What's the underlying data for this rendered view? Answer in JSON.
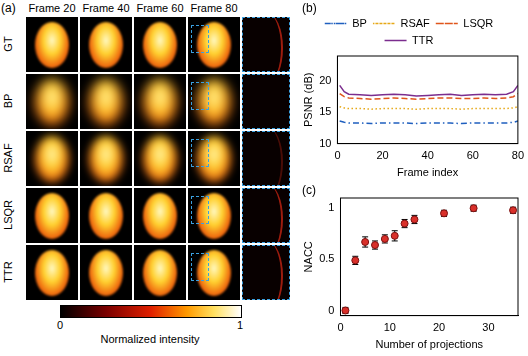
{
  "panel_a": {
    "panel": "(a)",
    "columns": [
      "Frame 20",
      "Frame 40",
      "Frame 60",
      "Frame 80"
    ],
    "rows": [
      "GT",
      "BP",
      "RSAF",
      "LSQR",
      "TTR"
    ],
    "colorbar": {
      "label": "Normalized intensity",
      "range": [
        0,
        1
      ],
      "ticks": [
        0,
        1
      ]
    }
  },
  "chart_data": [
    {
      "panel": "(b)",
      "type": "line",
      "x_label": "Frame index",
      "y_label": "PSNR (dB)",
      "x": [
        1,
        3,
        5,
        10,
        15,
        20,
        25,
        30,
        35,
        40,
        45,
        50,
        55,
        60,
        65,
        70,
        75,
        78,
        80
      ],
      "series": [
        {
          "name": "BP",
          "color": "#1f5fbf",
          "line_style": "dashdot",
          "values": [
            13.6,
            13.4,
            13.3,
            13.3,
            13.2,
            13.3,
            13.3,
            13.3,
            13.2,
            13.3,
            13.3,
            13.3,
            13.2,
            13.3,
            13.3,
            13.3,
            13.3,
            13.4,
            13.6
          ]
        },
        {
          "name": "RSAF",
          "color": "#e6a817",
          "line_style": "dotted",
          "values": [
            15.9,
            15.7,
            15.6,
            15.6,
            15.5,
            15.6,
            15.6,
            15.6,
            15.5,
            15.6,
            15.6,
            15.6,
            15.5,
            15.6,
            15.6,
            15.6,
            15.6,
            15.7,
            15.9
          ]
        },
        {
          "name": "LSQR",
          "color": "#e0551b",
          "line_style": "dashed",
          "values": [
            18.0,
            17.5,
            17.3,
            17.2,
            17.1,
            17.2,
            17.3,
            17.2,
            17.1,
            17.2,
            17.3,
            17.3,
            17.2,
            17.2,
            17.3,
            17.2,
            17.3,
            17.5,
            18.0
          ]
        },
        {
          "name": "TTR",
          "color": "#7b2d8e",
          "line_style": "solid",
          "values": [
            19.3,
            18.3,
            17.9,
            17.8,
            17.7,
            17.8,
            17.9,
            17.8,
            17.6,
            17.7,
            17.8,
            17.9,
            17.7,
            17.8,
            17.9,
            17.8,
            17.9,
            18.3,
            19.3
          ]
        }
      ],
      "xlim": [
        0,
        80
      ],
      "xticks": [
        0,
        20,
        40,
        60,
        80
      ],
      "ylim": [
        10,
        24
      ],
      "yticks": [
        10,
        15,
        20
      ],
      "grid": false,
      "legend": "top"
    },
    {
      "panel": "(c)",
      "type": "scatter",
      "x_label": "Number of projections",
      "y_label": "NACC",
      "x": [
        1,
        3,
        5,
        7,
        9,
        11,
        13,
        15,
        21,
        27,
        35
      ],
      "values": [
        0.0,
        0.49,
        0.67,
        0.64,
        0.7,
        0.73,
        0.85,
        0.89,
        0.95,
        1.0,
        0.98
      ],
      "errors": [
        0.03,
        0.04,
        0.05,
        0.04,
        0.04,
        0.05,
        0.04,
        0.04,
        0.03,
        0.03,
        0.03
      ],
      "color": "#d9302a",
      "marker": "circle",
      "xlim": [
        0,
        36
      ],
      "xticks": [
        0,
        10,
        20,
        30
      ],
      "ylim": [
        -0.05,
        1.1
      ],
      "yticks": [
        0,
        0.5,
        1
      ],
      "grid": false
    }
  ]
}
